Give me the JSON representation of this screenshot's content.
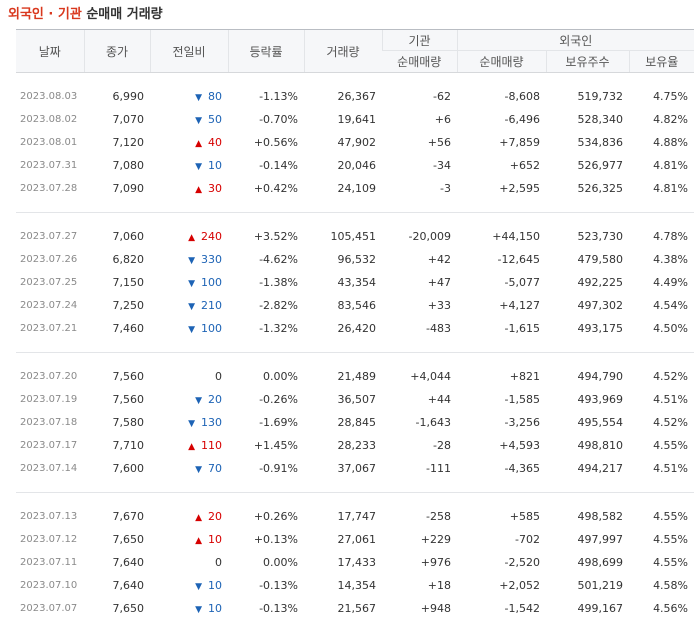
{
  "page_title": {
    "part1": "외국인",
    "dot": " · ",
    "part2": "기관",
    "part3": "순매매 거래량"
  },
  "headers": {
    "date": "날짜",
    "close": "종가",
    "change": "전일비",
    "rate": "등락률",
    "volume": "거래량",
    "inst_group": "기관",
    "foreign_group": "외국인",
    "inst_net": "순매매량",
    "foreign_net": "순매매량",
    "holdings": "보유주수",
    "ratio": "보유율"
  },
  "colors": {
    "up": "#d60000",
    "down": "#1d63b5",
    "title_accent": "#d9381e"
  },
  "groups": [
    [
      {
        "date": "2023.08.03",
        "close": "6,990",
        "dir": "down",
        "change": "80",
        "rate": "-1.13%",
        "volume": "26,367",
        "inst": "-62",
        "foreign": "-8,608",
        "holdings": "519,732",
        "ratio": "4.75%"
      },
      {
        "date": "2023.08.02",
        "close": "7,070",
        "dir": "down",
        "change": "50",
        "rate": "-0.70%",
        "volume": "19,641",
        "inst": "+6",
        "foreign": "-6,496",
        "holdings": "528,340",
        "ratio": "4.82%"
      },
      {
        "date": "2023.08.01",
        "close": "7,120",
        "dir": "up",
        "change": "40",
        "rate": "+0.56%",
        "volume": "47,902",
        "inst": "+56",
        "foreign": "+7,859",
        "holdings": "534,836",
        "ratio": "4.88%"
      },
      {
        "date": "2023.07.31",
        "close": "7,080",
        "dir": "down",
        "change": "10",
        "rate": "-0.14%",
        "volume": "20,046",
        "inst": "-34",
        "foreign": "+652",
        "holdings": "526,977",
        "ratio": "4.81%"
      },
      {
        "date": "2023.07.28",
        "close": "7,090",
        "dir": "up",
        "change": "30",
        "rate": "+0.42%",
        "volume": "24,109",
        "inst": "-3",
        "foreign": "+2,595",
        "holdings": "526,325",
        "ratio": "4.81%"
      }
    ],
    [
      {
        "date": "2023.07.27",
        "close": "7,060",
        "dir": "up",
        "change": "240",
        "rate": "+3.52%",
        "volume": "105,451",
        "inst": "-20,009",
        "foreign": "+44,150",
        "holdings": "523,730",
        "ratio": "4.78%"
      },
      {
        "date": "2023.07.26",
        "close": "6,820",
        "dir": "down",
        "change": "330",
        "rate": "-4.62%",
        "volume": "96,532",
        "inst": "+42",
        "foreign": "-12,645",
        "holdings": "479,580",
        "ratio": "4.38%"
      },
      {
        "date": "2023.07.25",
        "close": "7,150",
        "dir": "down",
        "change": "100",
        "rate": "-1.38%",
        "volume": "43,354",
        "inst": "+47",
        "foreign": "-5,077",
        "holdings": "492,225",
        "ratio": "4.49%"
      },
      {
        "date": "2023.07.24",
        "close": "7,250",
        "dir": "down",
        "change": "210",
        "rate": "-2.82%",
        "volume": "83,546",
        "inst": "+33",
        "foreign": "+4,127",
        "holdings": "497,302",
        "ratio": "4.54%"
      },
      {
        "date": "2023.07.21",
        "close": "7,460",
        "dir": "down",
        "change": "100",
        "rate": "-1.32%",
        "volume": "26,420",
        "inst": "-483",
        "foreign": "-1,615",
        "holdings": "493,175",
        "ratio": "4.50%"
      }
    ],
    [
      {
        "date": "2023.07.20",
        "close": "7,560",
        "dir": "flat",
        "change": "0",
        "rate": "0.00%",
        "volume": "21,489",
        "inst": "+4,044",
        "foreign": "+821",
        "holdings": "494,790",
        "ratio": "4.52%"
      },
      {
        "date": "2023.07.19",
        "close": "7,560",
        "dir": "down",
        "change": "20",
        "rate": "-0.26%",
        "volume": "36,507",
        "inst": "+44",
        "foreign": "-1,585",
        "holdings": "493,969",
        "ratio": "4.51%"
      },
      {
        "date": "2023.07.18",
        "close": "7,580",
        "dir": "down",
        "change": "130",
        "rate": "-1.69%",
        "volume": "28,845",
        "inst": "-1,643",
        "foreign": "-3,256",
        "holdings": "495,554",
        "ratio": "4.52%"
      },
      {
        "date": "2023.07.17",
        "close": "7,710",
        "dir": "up",
        "change": "110",
        "rate": "+1.45%",
        "volume": "28,233",
        "inst": "-28",
        "foreign": "+4,593",
        "holdings": "498,810",
        "ratio": "4.55%"
      },
      {
        "date": "2023.07.14",
        "close": "7,600",
        "dir": "down",
        "change": "70",
        "rate": "-0.91%",
        "volume": "37,067",
        "inst": "-111",
        "foreign": "-4,365",
        "holdings": "494,217",
        "ratio": "4.51%"
      }
    ],
    [
      {
        "date": "2023.07.13",
        "close": "7,670",
        "dir": "up",
        "change": "20",
        "rate": "+0.26%",
        "volume": "17,747",
        "inst": "-258",
        "foreign": "+585",
        "holdings": "498,582",
        "ratio": "4.55%"
      },
      {
        "date": "2023.07.12",
        "close": "7,650",
        "dir": "up",
        "change": "10",
        "rate": "+0.13%",
        "volume": "27,061",
        "inst": "+229",
        "foreign": "-702",
        "holdings": "497,997",
        "ratio": "4.55%"
      },
      {
        "date": "2023.07.11",
        "close": "7,640",
        "dir": "flat",
        "change": "0",
        "rate": "0.00%",
        "volume": "17,433",
        "inst": "+976",
        "foreign": "-2,520",
        "holdings": "498,699",
        "ratio": "4.55%"
      },
      {
        "date": "2023.07.10",
        "close": "7,640",
        "dir": "down",
        "change": "10",
        "rate": "-0.13%",
        "volume": "14,354",
        "inst": "+18",
        "foreign": "+2,052",
        "holdings": "501,219",
        "ratio": "4.58%"
      },
      {
        "date": "2023.07.07",
        "close": "7,650",
        "dir": "down",
        "change": "10",
        "rate": "-0.13%",
        "volume": "21,567",
        "inst": "+948",
        "foreign": "-1,542",
        "holdings": "499,167",
        "ratio": "4.56%"
      }
    ]
  ]
}
